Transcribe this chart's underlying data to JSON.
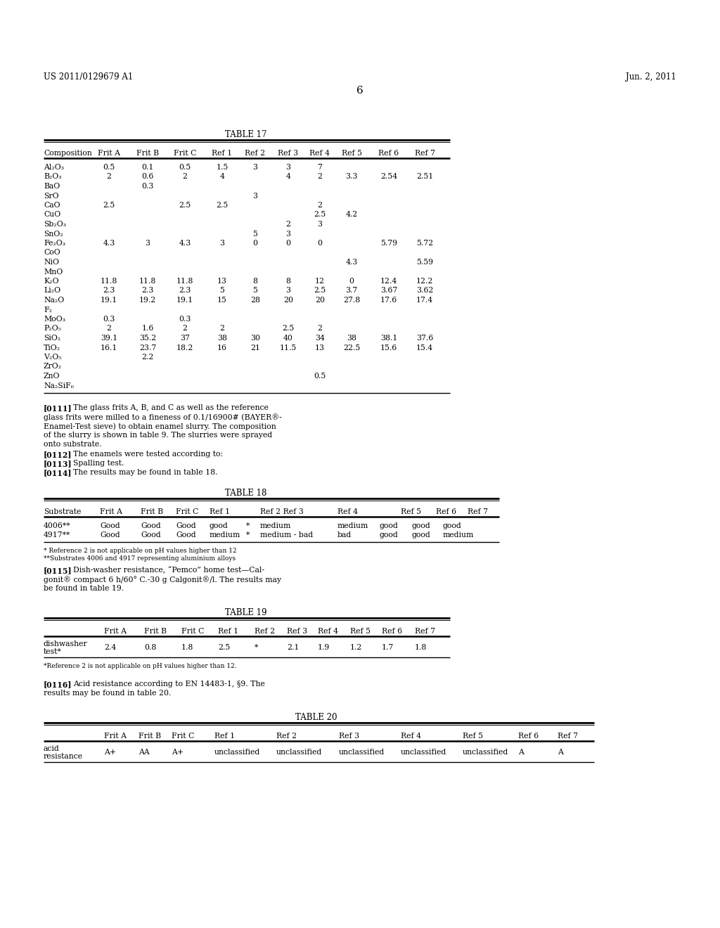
{
  "patent_number": "US 2011/0129679 A1",
  "patent_date": "Jun. 2, 2011",
  "page_number": "6",
  "background_color": "#ffffff",
  "text_color": "#000000",
  "table17": {
    "title": "TABLE 17",
    "headers": [
      "Composition",
      "Frit A",
      "Frit B",
      "Frit C",
      "Ref 1",
      "Ref 2",
      "Ref 3",
      "Ref 4",
      "Ref 5",
      "Ref 6",
      "Ref 7"
    ],
    "rows": [
      [
        "Al₂O₃",
        "0.5",
        "0.1",
        "0.5",
        "1.5",
        "3",
        "3",
        "7",
        "",
        "",
        ""
      ],
      [
        "B₂O₃",
        "2",
        "0.6",
        "2",
        "4",
        "",
        "4",
        "2",
        "3.3",
        "2.54",
        "2.51"
      ],
      [
        "BaO",
        "",
        "0.3",
        "",
        "",
        "",
        "",
        "",
        "",
        "",
        ""
      ],
      [
        "SrO",
        "",
        "",
        "",
        "",
        "3",
        "",
        "",
        "",
        "",
        ""
      ],
      [
        "CaO",
        "2.5",
        "",
        "2.5",
        "2.5",
        "",
        "",
        "2",
        "",
        "",
        ""
      ],
      [
        "CuO",
        "",
        "",
        "",
        "",
        "",
        "",
        "2.5",
        "4.2",
        "",
        ""
      ],
      [
        "Sb₂O₃",
        "",
        "",
        "",
        "",
        "",
        "2",
        "3",
        "",
        "",
        ""
      ],
      [
        "SnO₂",
        "",
        "",
        "",
        "",
        "5",
        "3",
        "",
        "",
        "",
        ""
      ],
      [
        "Fe₂O₃",
        "4.3",
        "3",
        "4.3",
        "3",
        "0",
        "0",
        "0",
        "",
        "5.79",
        "5.72"
      ],
      [
        "CoO",
        "",
        "",
        "",
        "",
        "",
        "",
        "",
        "",
        "",
        ""
      ],
      [
        "NiO",
        "",
        "",
        "",
        "",
        "",
        "",
        "",
        "4.3",
        "",
        "5.59"
      ],
      [
        "MnO",
        "",
        "",
        "",
        "",
        "",
        "",
        "",
        "",
        "",
        ""
      ],
      [
        "K₂O",
        "11.8",
        "11.8",
        "11.8",
        "13",
        "8",
        "8",
        "12",
        "0",
        "12.4",
        "12.2"
      ],
      [
        "Li₂O",
        "2.3",
        "2.3",
        "2.3",
        "5",
        "5",
        "3",
        "2.5",
        "3.7",
        "3.67",
        "3.62"
      ],
      [
        "Na₂O",
        "19.1",
        "19.2",
        "19.1",
        "15",
        "28",
        "20",
        "20",
        "27.8",
        "17.6",
        "17.4"
      ],
      [
        "F₂",
        "",
        "",
        "",
        "",
        "",
        "",
        "",
        "",
        "",
        ""
      ],
      [
        "MoO₃",
        "0.3",
        "",
        "0.3",
        "",
        "",
        "",
        "",
        "",
        "",
        ""
      ],
      [
        "P₂O₅",
        "2",
        "1.6",
        "2",
        "2",
        "",
        "2.5",
        "2",
        "",
        "",
        ""
      ],
      [
        "SiO₂",
        "39.1",
        "35.2",
        "37",
        "38",
        "30",
        "40",
        "34",
        "38",
        "38.1",
        "37.6"
      ],
      [
        "TiO₂",
        "16.1",
        "23.7",
        "18.2",
        "16",
        "21",
        "11.5",
        "13",
        "22.5",
        "15.6",
        "15.4"
      ],
      [
        "V₂O₅",
        "",
        "2.2",
        "",
        "",
        "",
        "",
        "",
        "",
        "",
        ""
      ],
      [
        "ZrO₂",
        "",
        "",
        "",
        "",
        "",
        "",
        "",
        "",
        "",
        ""
      ],
      [
        "ZnO",
        "",
        "",
        "",
        "",
        "",
        "",
        "0.5",
        "",
        "",
        ""
      ],
      [
        "Na₂SiF₆",
        "",
        "",
        "",
        "",
        "",
        "",
        "",
        "",
        "",
        ""
      ]
    ]
  },
  "table18": {
    "title": "TABLE 18",
    "footnote1": "* Reference 2 is not applicable on pH values higher than 12",
    "footnote2": "**Substrates 4006 and 4917 representing aluminium alloys"
  },
  "table19": {
    "title": "TABLE 19",
    "footnote": "*Reference 2 is not applicable on pH values higher than 12."
  },
  "table20": {
    "title": "TABLE 20"
  }
}
